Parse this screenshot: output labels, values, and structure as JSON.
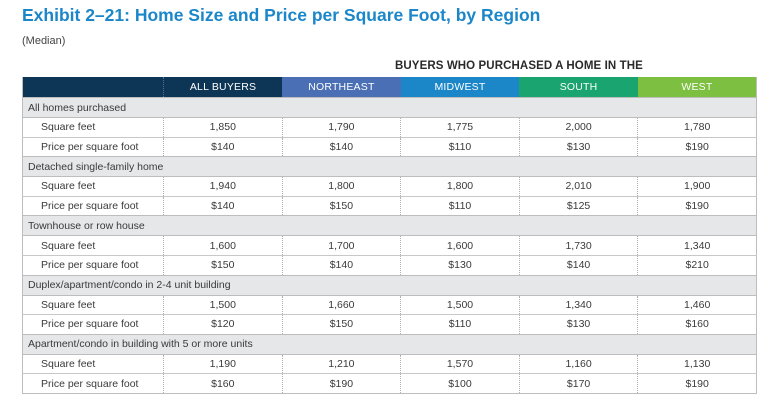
{
  "title": "Exhibit 2–21:  Home Size and Price per Square Foot, by Region",
  "subtitle": "(Median)",
  "super_header": "BUYERS WHO PURCHASED A HOME IN THE",
  "columns": [
    {
      "label": "",
      "color": "#0d3556"
    },
    {
      "label": "ALL BUYERS",
      "color": "#0d3556"
    },
    {
      "label": "NORTHEAST",
      "color": "#4a6fb5"
    },
    {
      "label": "MIDWEST",
      "color": "#1b87c9"
    },
    {
      "label": "SOUTH",
      "color": "#1aa570"
    },
    {
      "label": "WEST",
      "color": "#7dbf41"
    }
  ],
  "groups": [
    {
      "label": "All homes purchased",
      "rows": [
        {
          "label": "Square feet",
          "values": [
            "1,850",
            "1,790",
            "1,775",
            "2,000",
            "1,780"
          ]
        },
        {
          "label": "Price per square foot",
          "values": [
            "$140",
            "$140",
            "$110",
            "$130",
            "$190"
          ]
        }
      ]
    },
    {
      "label": "Detached single-family home",
      "rows": [
        {
          "label": "Square feet",
          "values": [
            "1,940",
            "1,800",
            "1,800",
            "2,010",
            "1,900"
          ]
        },
        {
          "label": "Price per square foot",
          "values": [
            "$140",
            "$150",
            "$110",
            "$125",
            "$190"
          ]
        }
      ]
    },
    {
      "label": "Townhouse or row house",
      "rows": [
        {
          "label": "Square feet",
          "values": [
            "1,600",
            "1,700",
            "1,600",
            "1,730",
            "1,340"
          ]
        },
        {
          "label": "Price per square foot",
          "values": [
            "$150",
            "$140",
            "$130",
            "$140",
            "$210"
          ]
        }
      ]
    },
    {
      "label": "Duplex/apartment/condo in 2-4 unit building",
      "rows": [
        {
          "label": "Square feet",
          "values": [
            "1,500",
            "1,660",
            "1,500",
            "1,340",
            "1,460"
          ]
        },
        {
          "label": "Price per square foot",
          "values": [
            "$120",
            "$150",
            "$110",
            "$130",
            "$160"
          ]
        }
      ]
    },
    {
      "label": "Apartment/condo in building with 5 or more units",
      "rows": [
        {
          "label": "Square feet",
          "values": [
            "1,190",
            "1,210",
            "1,570",
            "1,160",
            "1,130"
          ]
        },
        {
          "label": "Price per square foot",
          "values": [
            "$160",
            "$190",
            "$100",
            "$170",
            "$190"
          ]
        }
      ]
    }
  ]
}
